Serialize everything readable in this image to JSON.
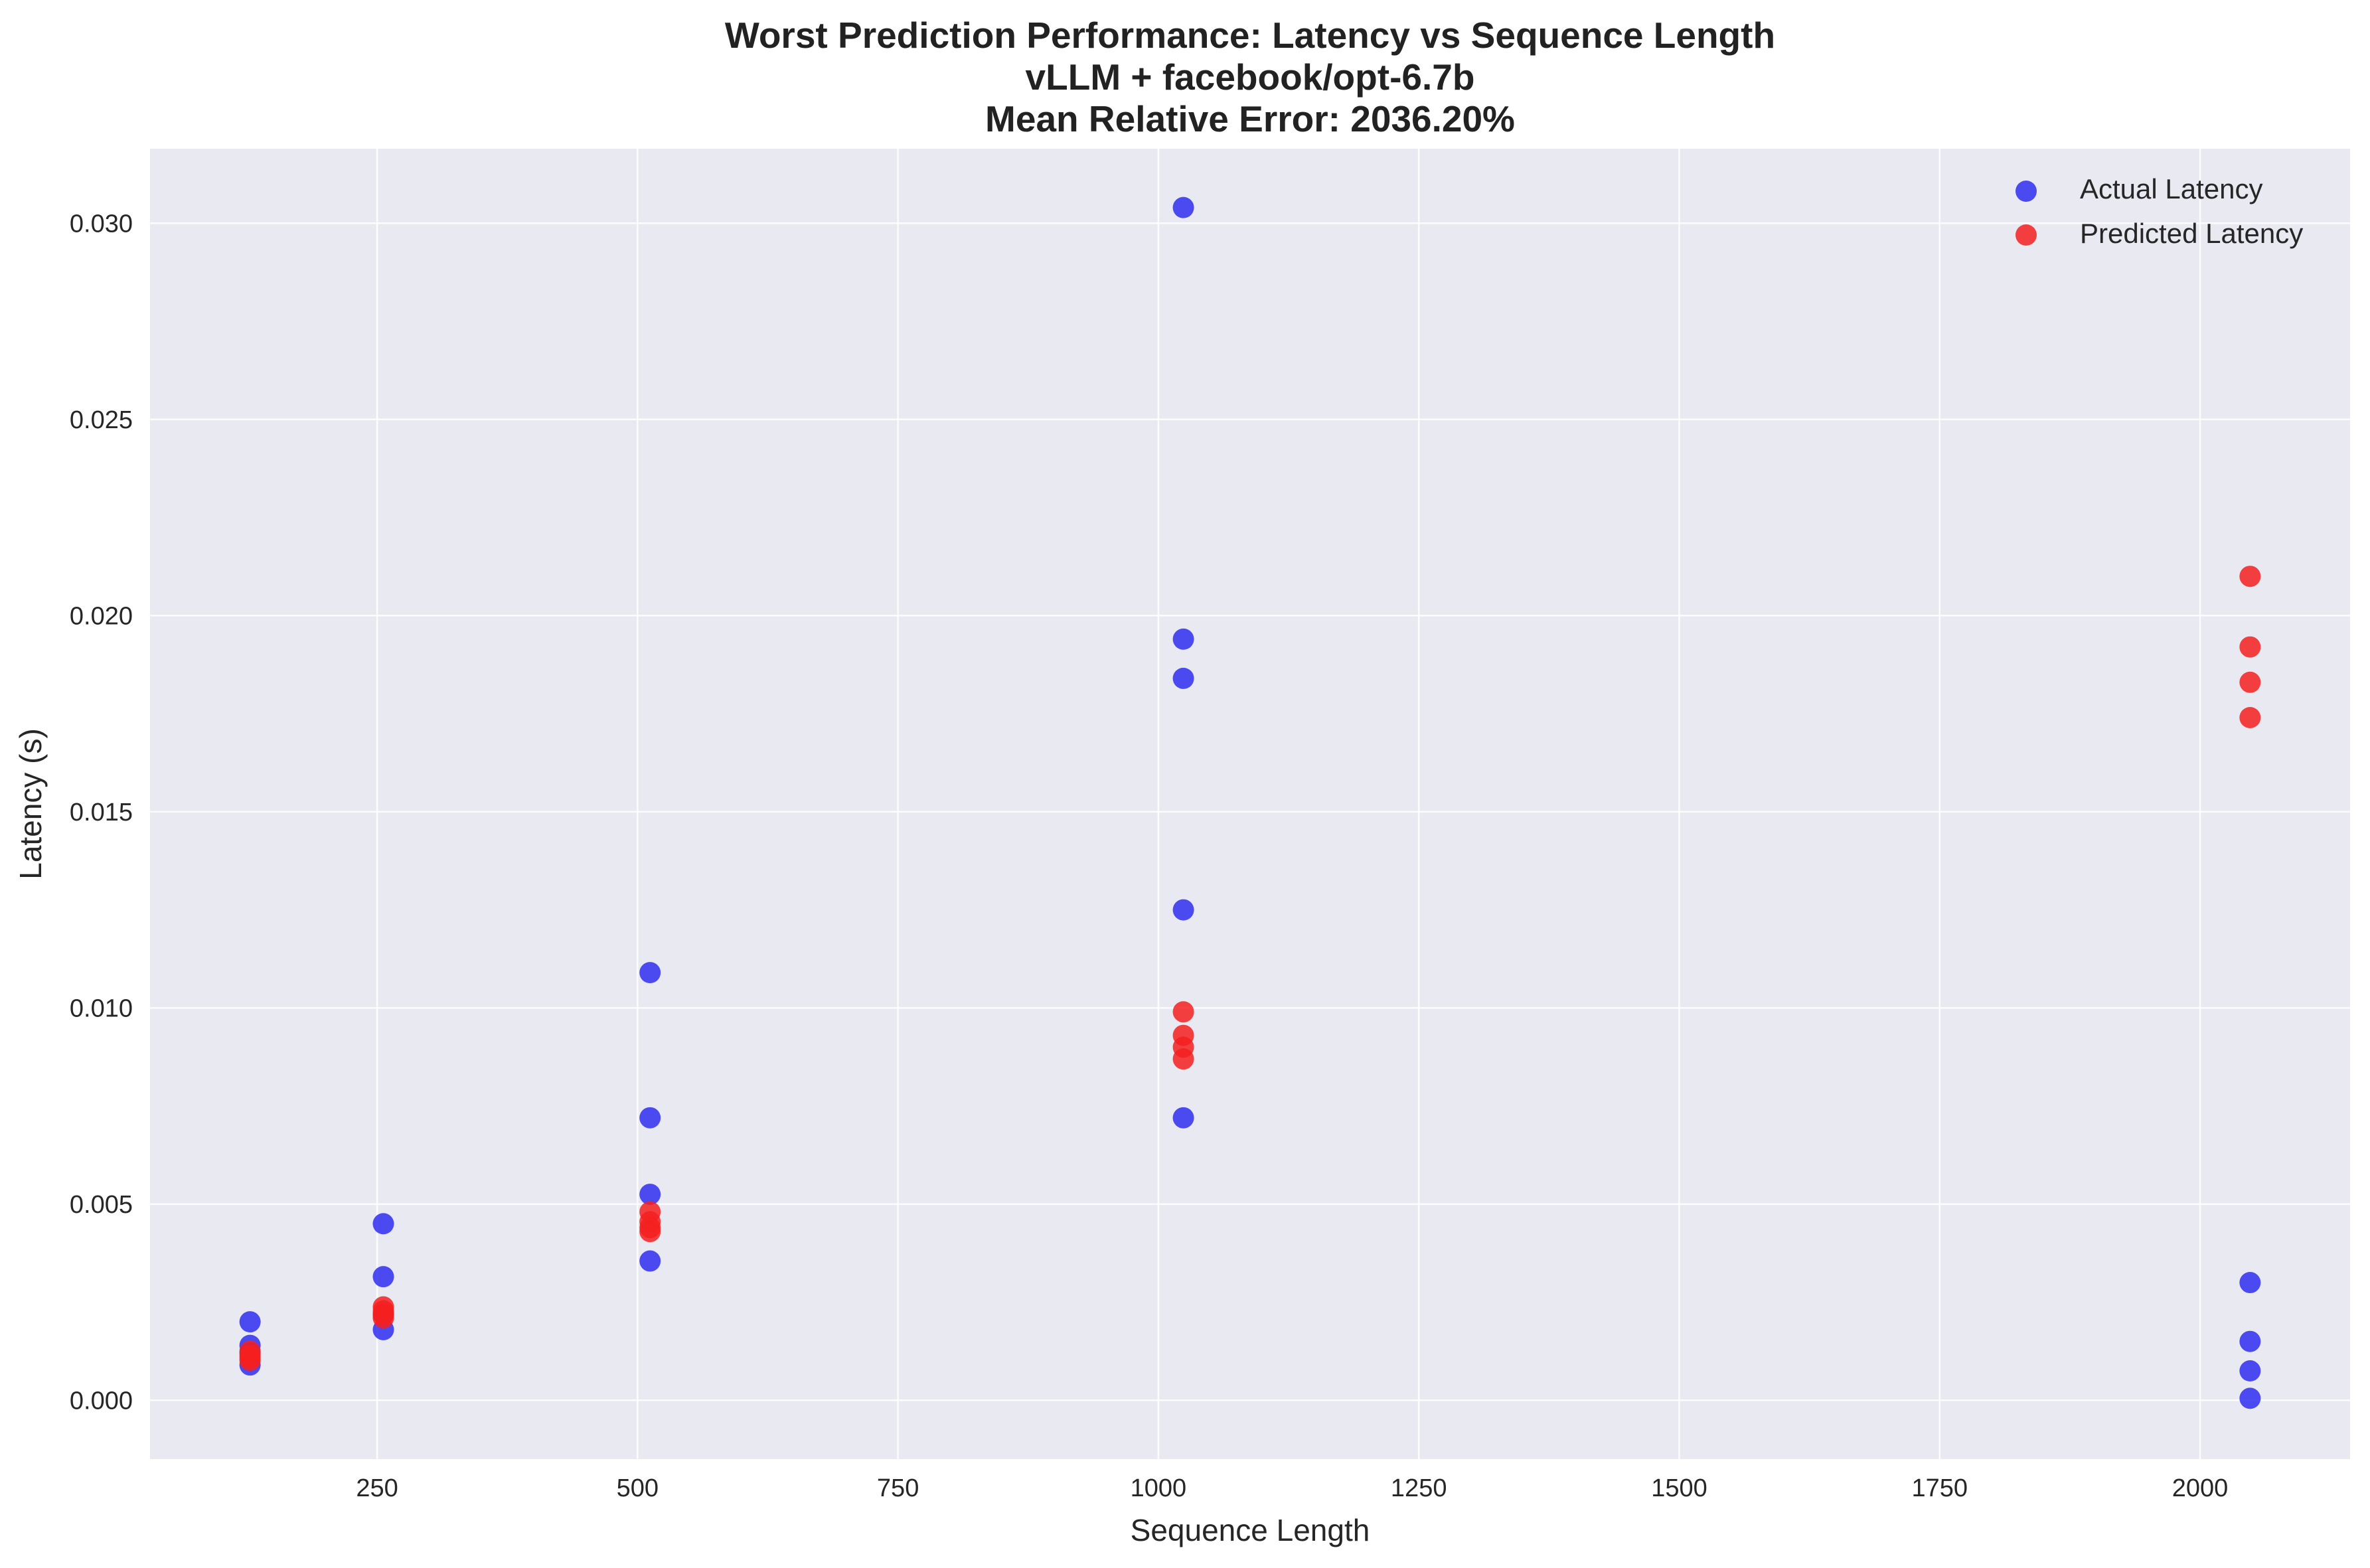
{
  "chart_data": {
    "type": "scatter",
    "title": [
      "Worst Prediction Performance: Latency vs Sequence Length",
      "vLLM + facebook/opt-6.7b",
      "Mean Relative Error: 2036.20%"
    ],
    "xlabel": "Sequence Length",
    "ylabel": "Latency (s)",
    "xlim": [
      32,
      2144
    ],
    "ylim": [
      -0.0015,
      0.0319
    ],
    "xticks": [
      250,
      500,
      750,
      1000,
      1250,
      1500,
      1750,
      2000
    ],
    "xtick_labels": [
      "250",
      "500",
      "750",
      "1000",
      "1250",
      "1500",
      "1750",
      "2000"
    ],
    "yticks": [
      0.0,
      0.005,
      0.01,
      0.015,
      0.02,
      0.025,
      0.03
    ],
    "ytick_labels": [
      "0.000",
      "0.005",
      "0.010",
      "0.015",
      "0.020",
      "0.025",
      "0.030"
    ],
    "grid": true,
    "legend_position": "top-right",
    "series": [
      {
        "name": "Actual Latency",
        "color": "#2e2ef0",
        "points": [
          {
            "x": 128,
            "y": 0.002
          },
          {
            "x": 128,
            "y": 0.0014
          },
          {
            "x": 128,
            "y": 0.0012
          },
          {
            "x": 128,
            "y": 0.0009
          },
          {
            "x": 256,
            "y": 0.0045
          },
          {
            "x": 256,
            "y": 0.00315
          },
          {
            "x": 256,
            "y": 0.0022
          },
          {
            "x": 256,
            "y": 0.0018
          },
          {
            "x": 512,
            "y": 0.0109
          },
          {
            "x": 512,
            "y": 0.0072
          },
          {
            "x": 512,
            "y": 0.00525
          },
          {
            "x": 512,
            "y": 0.00355
          },
          {
            "x": 1024,
            "y": 0.0304
          },
          {
            "x": 1024,
            "y": 0.0194
          },
          {
            "x": 1024,
            "y": 0.0184
          },
          {
            "x": 1024,
            "y": 0.0125
          },
          {
            "x": 1024,
            "y": 0.0072
          },
          {
            "x": 2048,
            "y": 0.003
          },
          {
            "x": 2048,
            "y": 0.0015
          },
          {
            "x": 2048,
            "y": 0.00075
          },
          {
            "x": 2048,
            "y": 5e-05
          }
        ]
      },
      {
        "name": "Predicted Latency",
        "color": "#f52020",
        "points": [
          {
            "x": 128,
            "y": 0.00125
          },
          {
            "x": 128,
            "y": 0.00115
          },
          {
            "x": 128,
            "y": 0.00108
          },
          {
            "x": 128,
            "y": 0.00102
          },
          {
            "x": 256,
            "y": 0.00238
          },
          {
            "x": 256,
            "y": 0.00228
          },
          {
            "x": 256,
            "y": 0.00218
          },
          {
            "x": 256,
            "y": 0.0021
          },
          {
            "x": 512,
            "y": 0.0048
          },
          {
            "x": 512,
            "y": 0.00455
          },
          {
            "x": 512,
            "y": 0.0044
          },
          {
            "x": 512,
            "y": 0.0043
          },
          {
            "x": 1024,
            "y": 0.0099
          },
          {
            "x": 1024,
            "y": 0.0093
          },
          {
            "x": 1024,
            "y": 0.009
          },
          {
            "x": 1024,
            "y": 0.0087
          },
          {
            "x": 2048,
            "y": 0.021
          },
          {
            "x": 2048,
            "y": 0.0192
          },
          {
            "x": 2048,
            "y": 0.0183
          },
          {
            "x": 2048,
            "y": 0.0174
          }
        ]
      }
    ]
  }
}
